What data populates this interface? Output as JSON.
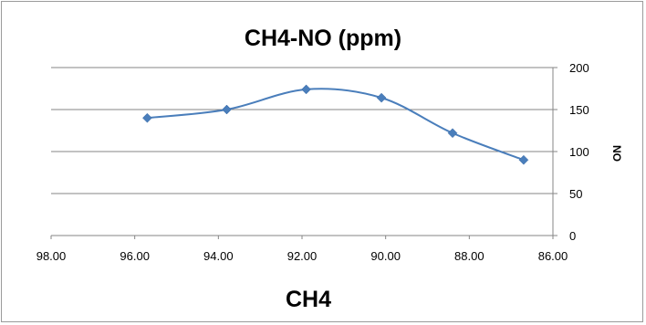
{
  "chart_data": {
    "type": "scatter",
    "title": "CH4-NO (ppm)",
    "xlabel": "CH4",
    "ylabel": "NO",
    "x_reversed": true,
    "xlim": [
      86,
      98
    ],
    "ylim": [
      0,
      200
    ],
    "x_ticks": [
      "98.00",
      "96.00",
      "94.00",
      "92.00",
      "90.00",
      "88.00",
      "86.00"
    ],
    "y_ticks": [
      "0",
      "50",
      "100",
      "150",
      "200"
    ],
    "y_axis_side": "right",
    "grid": "horizontal",
    "smooth_line": true,
    "series": [
      {
        "x": [
          95.7,
          93.8,
          91.9,
          90.1,
          88.4,
          86.7
        ],
        "y": [
          140,
          150,
          174,
          164,
          122,
          90
        ]
      }
    ],
    "colors": {
      "series": "#4a7ebb",
      "grid": "#868686",
      "axis": "#868686"
    }
  }
}
